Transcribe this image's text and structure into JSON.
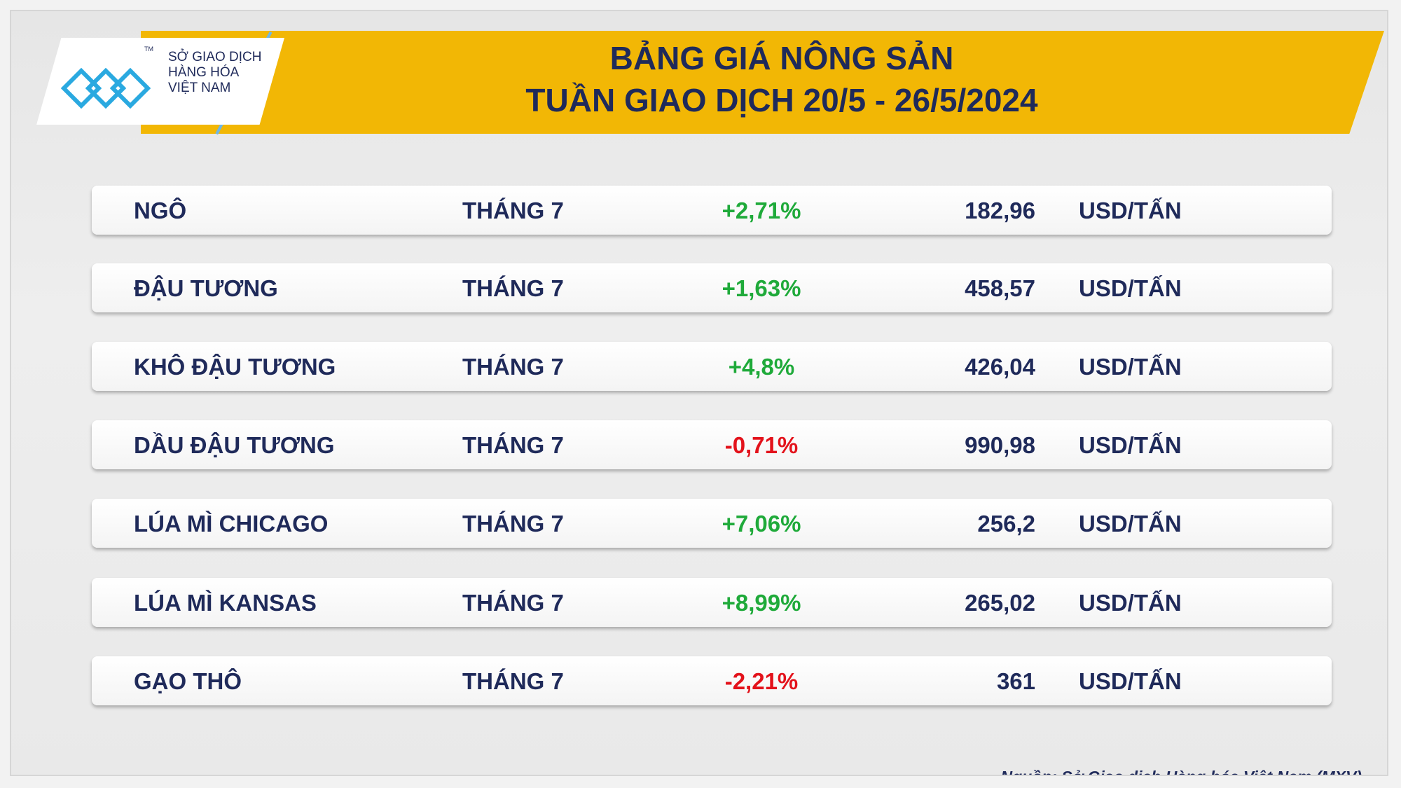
{
  "header": {
    "title_line1": "BẢNG GIÁ NÔNG SẢN",
    "title_line2": "TUẦN GIAO DỊCH 20/5 - 26/5/2024",
    "logo_tm": "TM",
    "logo_line1": "SỞ GIAO DỊCH",
    "logo_line2": "HÀNG HÓA",
    "logo_line3": "VIỆT NAM"
  },
  "table": {
    "rows": [
      [
        "NGÔ",
        "THÁNG 7",
        "+2,71%",
        "182,96",
        "USD/TẤN"
      ],
      [
        "ĐẬU TƯƠNG",
        "THÁNG 7",
        "+1,63%",
        "458,57",
        "USD/TẤN"
      ],
      [
        "KHÔ ĐẬU TƯƠNG",
        "THÁNG 7",
        "+4,8%",
        "426,04",
        "USD/TẤN"
      ],
      [
        "DẦU ĐẬU TƯƠNG",
        "THÁNG 7",
        "-0,71%",
        "990,98",
        "USD/TẤN"
      ],
      [
        "LÚA MÌ CHICAGO",
        "THÁNG 7",
        "+7,06%",
        "256,2",
        "USD/TẤN"
      ],
      [
        "LÚA MÌ KANSAS",
        "THÁNG 7",
        "+8,99%",
        "265,02",
        "USD/TẤN"
      ],
      [
        "GẠO THÔ",
        "THÁNG 7",
        "-2,21%",
        "361",
        "USD/TẤN"
      ]
    ]
  },
  "footer": {
    "source": "Nguồn: Sở Giao dịch Hàng hóa Việt Nam (MXV)"
  }
}
